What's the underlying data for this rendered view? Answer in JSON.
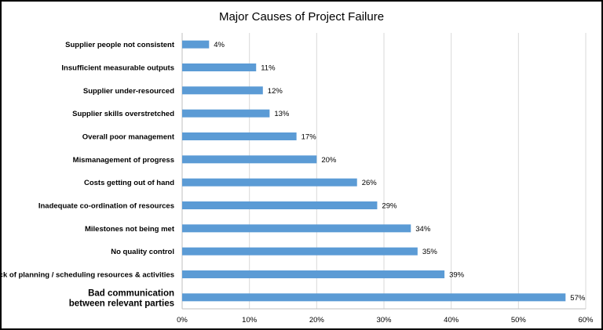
{
  "chart_data": {
    "type": "bar",
    "orientation": "horizontal",
    "title": "Major Causes of Project Failure",
    "categories": [
      "Supplier people not consistent",
      "Insufficient measurable outputs",
      "Supplier under-resourced",
      "Supplier skills overstretched",
      "Overall poor management",
      "Mismanagement of progress",
      "Costs getting out of hand",
      "Inadequate co-ordination of resources",
      "Milestones not being met",
      "No quality control",
      "Lack of planning / scheduling resources & activities",
      "Bad communication between relevant parties"
    ],
    "emphasized_category_lines": [
      "Bad communication",
      "between relevant parties"
    ],
    "values": [
      4,
      11,
      12,
      13,
      17,
      20,
      26,
      29,
      34,
      35,
      39,
      57
    ],
    "data_labels": [
      "4%",
      "11%",
      "12%",
      "13%",
      "17%",
      "20%",
      "26%",
      "29%",
      "34%",
      "35%",
      "39%",
      "57%"
    ],
    "xlim": [
      0,
      60
    ],
    "x_ticks": [
      0,
      10,
      20,
      30,
      40,
      50,
      60
    ],
    "x_tick_labels": [
      "0%",
      "10%",
      "20%",
      "30%",
      "40%",
      "50%",
      "60%"
    ],
    "grid": "vertical",
    "bar_color": "#5b9bd5",
    "grid_color": "#d9d9d9",
    "xlabel": "",
    "ylabel": ""
  }
}
